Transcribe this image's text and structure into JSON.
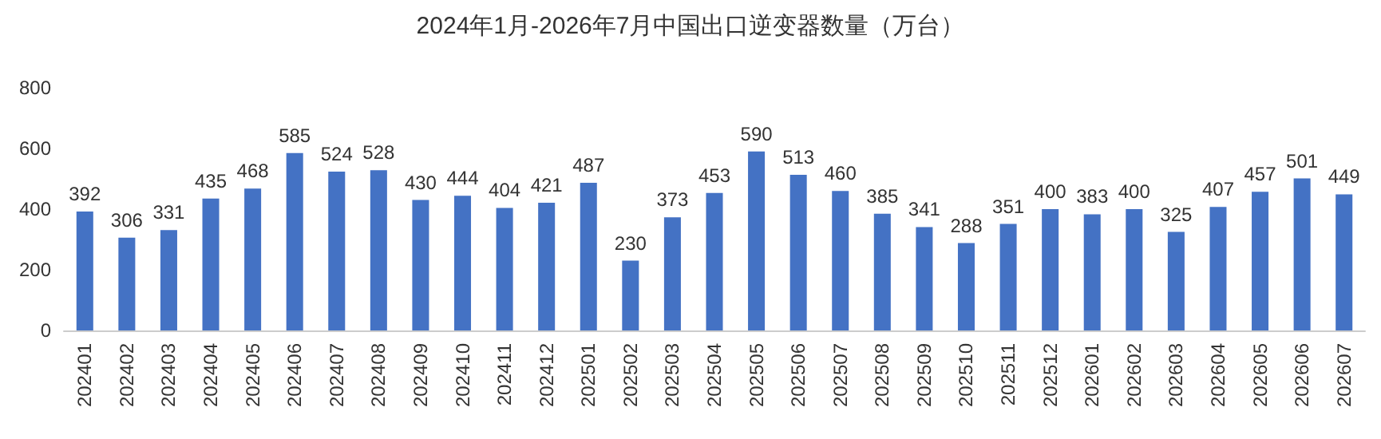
{
  "chart_data": {
    "type": "bar",
    "title": "2024年1月-2026年7月中国出口逆变器数量（万台）",
    "categories": [
      "202401",
      "202402",
      "202403",
      "202404",
      "202405",
      "202406",
      "202407",
      "202408",
      "202409",
      "202410",
      "202411",
      "202412",
      "202501",
      "202502",
      "202503",
      "202504",
      "202505",
      "202506",
      "202507",
      "202508",
      "202509",
      "202510",
      "202511",
      "202512",
      "202601",
      "202602",
      "202603",
      "202604",
      "202605",
      "202606",
      "202607"
    ],
    "values": [
      392,
      306,
      331,
      435,
      468,
      585,
      524,
      528,
      430,
      444,
      404,
      421,
      487,
      230,
      373,
      453,
      590,
      513,
      460,
      385,
      341,
      288,
      351,
      400,
      383,
      400,
      325,
      407,
      457,
      501,
      449
    ],
    "color": "#4472c4",
    "ylim": [
      0,
      800
    ],
    "yticks": [
      0,
      200,
      400,
      600,
      800
    ],
    "grid": false,
    "data_labels": true
  }
}
